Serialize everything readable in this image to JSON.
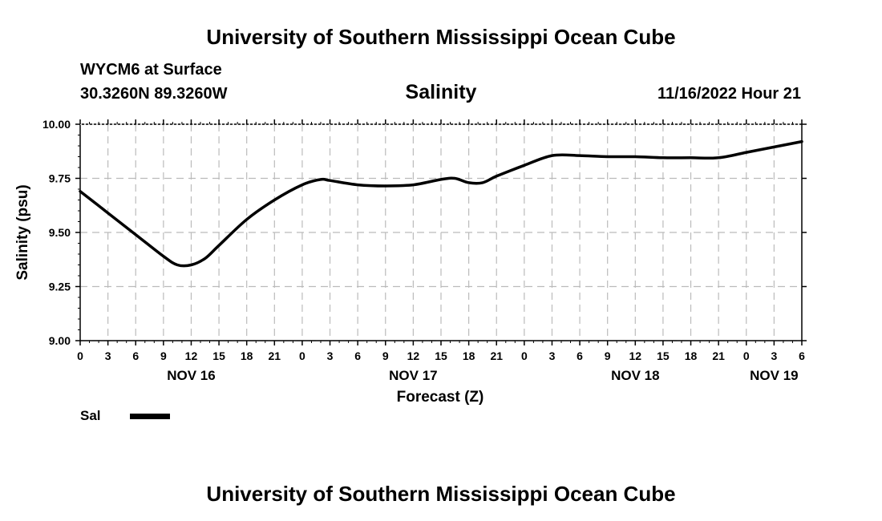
{
  "page": {
    "header_title": "University of Southern Mississippi Ocean Cube",
    "footer_title": "University of Southern Mississippi Ocean Cube"
  },
  "station": {
    "name": "WYCM6 at Surface",
    "coords": "30.3260N  89.3260W",
    "datetime": "11/16/2022 Hour 21"
  },
  "legend": {
    "label": "Sal"
  },
  "chart_data": {
    "type": "line",
    "title": "Salinity",
    "xlabel": "Forecast (Z)",
    "ylabel": "Salinity (psu)",
    "ylim": [
      9.0,
      10.0
    ],
    "xlim": [
      0,
      78
    ],
    "y_ticks": [
      "9.00",
      "9.25",
      "9.50",
      "9.75",
      "10.00"
    ],
    "x_ticks": [
      {
        "h": 0,
        "label": "0"
      },
      {
        "h": 3,
        "label": "3"
      },
      {
        "h": 6,
        "label": "6"
      },
      {
        "h": 9,
        "label": "9"
      },
      {
        "h": 12,
        "label": "12"
      },
      {
        "h": 15,
        "label": "15"
      },
      {
        "h": 18,
        "label": "18"
      },
      {
        "h": 21,
        "label": "21"
      },
      {
        "h": 24,
        "label": "0"
      },
      {
        "h": 27,
        "label": "3"
      },
      {
        "h": 30,
        "label": "6"
      },
      {
        "h": 33,
        "label": "9"
      },
      {
        "h": 36,
        "label": "12"
      },
      {
        "h": 39,
        "label": "15"
      },
      {
        "h": 42,
        "label": "18"
      },
      {
        "h": 45,
        "label": "21"
      },
      {
        "h": 48,
        "label": "0"
      },
      {
        "h": 51,
        "label": "3"
      },
      {
        "h": 54,
        "label": "6"
      },
      {
        "h": 57,
        "label": "9"
      },
      {
        "h": 60,
        "label": "12"
      },
      {
        "h": 63,
        "label": "15"
      },
      {
        "h": 66,
        "label": "18"
      },
      {
        "h": 69,
        "label": "21"
      },
      {
        "h": 72,
        "label": "0"
      },
      {
        "h": 75,
        "label": "3"
      },
      {
        "h": 78,
        "label": "6"
      }
    ],
    "date_labels": [
      {
        "h": 12,
        "label": "NOV 16"
      },
      {
        "h": 36,
        "label": "NOV 17"
      },
      {
        "h": 60,
        "label": "NOV 18"
      },
      {
        "h": 75,
        "label": "NOV 19"
      }
    ],
    "grid": true,
    "legend_position": "bottom-left",
    "series": [
      {
        "name": "Sal",
        "color": "#000000",
        "x": [
          0,
          3,
          6,
          9,
          10.5,
          12,
          13.5,
          15,
          18,
          21,
          24,
          26,
          27,
          30,
          33,
          36,
          39,
          40.5,
          42,
          43.5,
          45,
          48,
          51,
          54,
          57,
          60,
          63,
          66,
          69,
          72,
          75,
          78
        ],
        "values": [
          9.69,
          9.59,
          9.49,
          9.39,
          9.35,
          9.35,
          9.38,
          9.44,
          9.56,
          9.65,
          9.72,
          9.745,
          9.74,
          9.72,
          9.715,
          9.72,
          9.745,
          9.75,
          9.73,
          9.73,
          9.76,
          9.81,
          9.855,
          9.855,
          9.85,
          9.85,
          9.845,
          9.845,
          9.845,
          9.87,
          9.895,
          9.92
        ]
      }
    ]
  }
}
